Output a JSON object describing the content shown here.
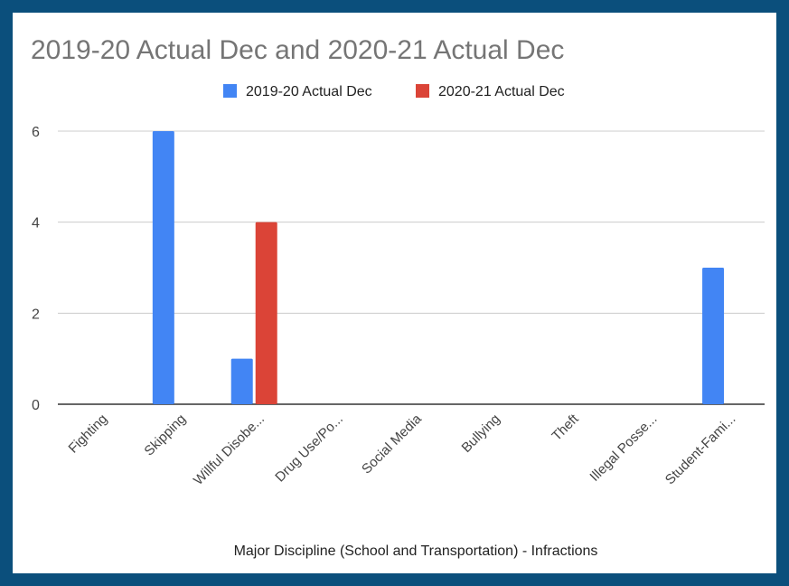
{
  "chart_data": {
    "type": "bar",
    "title": "2019-20 Actual  Dec  and 2020-21 Actual Dec",
    "xlabel": "Major Discipline (School and Transportation) - Infractions",
    "ylabel": "",
    "ylim": [
      0,
      6
    ],
    "yticks": [
      0,
      2,
      4,
      6
    ],
    "categories": [
      "Fighting",
      "Skipping",
      "Willful Disobe...",
      "Drug Use/Po...",
      "Social Media",
      "Bullying",
      "Theft",
      "Illegal Posse...",
      "Student-Fami..."
    ],
    "series": [
      {
        "name": "2019-20 Actual  Dec",
        "color": "#4285f4",
        "values": [
          0,
          6,
          1,
          0,
          0,
          0,
          0,
          0,
          3
        ]
      },
      {
        "name": "2020-21 Actual Dec",
        "color": "#db4437",
        "values": [
          0,
          0,
          4,
          0,
          0,
          0,
          0,
          0,
          0
        ]
      }
    ],
    "legend_position": "top",
    "grid": true
  }
}
